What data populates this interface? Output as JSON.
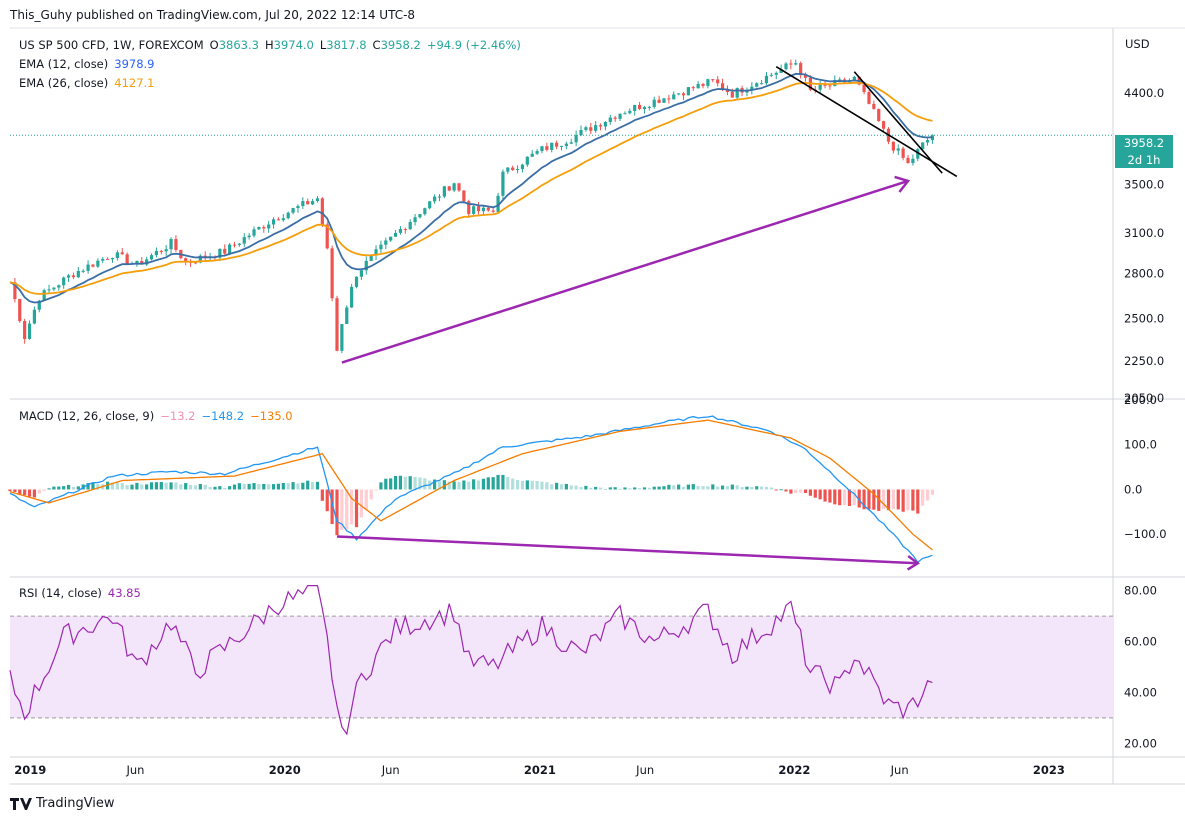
{
  "header": "This_Guhy published on TradingView.com, Jul 20, 2022 12:14 UTC-8",
  "footer_logo": "TradingView",
  "price_axis_unit": "USD",
  "colors": {
    "up": "#26a69a",
    "down": "#ef5350",
    "ema12": "#2962ff",
    "ema12_line": "#3a6ea5",
    "ema26": "#f59e0b",
    "macd": "#2196f3",
    "signal": "#f57c00",
    "rsi": "#9c27b0",
    "arrow": "#9c27b0",
    "trendline": "#000000",
    "rsi_band": "#f3e5fa"
  },
  "price_panel": {
    "symbol": "US SP 500 CFD, 1W, FOREXCOM",
    "ohlc": {
      "o_label": "O",
      "o": "3863.3",
      "h_label": "H",
      "h": "3974.0",
      "l_label": "L",
      "l": "3817.8",
      "c_label": "C",
      "c": "3958.2",
      "chg": "+94.9 (+2.46%)"
    },
    "ema12_label": "EMA (12, close)",
    "ema12_value": "3978.9",
    "ema26_label": "EMA (26, close)",
    "ema26_value": "4127.1",
    "last_price_tag": "3958.2",
    "countdown_tag": "2d 1h",
    "y_ticks": [
      "4400.0",
      "3500.0",
      "3100.0",
      "2800.0",
      "2500.0",
      "2250.0",
      "2050.0"
    ]
  },
  "macd_panel": {
    "label": "MACD (12, 26, close, 9)",
    "hist_value": "−13.2",
    "macd_value": "−148.2",
    "signal_value": "−135.0",
    "y_ticks": [
      "200.0",
      "100.0",
      "0.0",
      "−100.0"
    ]
  },
  "rsi_panel": {
    "label": "RSI (14, close)",
    "value": "43.85",
    "y_ticks": [
      "80.00",
      "60.00",
      "40.00",
      "20.00"
    ]
  },
  "x_ticks": [
    "2019",
    "Jun",
    "2020",
    "Jun",
    "2021",
    "Jun",
    "2022",
    "Jun",
    "2023"
  ],
  "chart_data": [
    {
      "type": "candlestick",
      "title": "US SP 500 CFD, 1W, FOREXCOM",
      "ylabel": "USD",
      "y_scale": "log",
      "ylim": [
        2050,
        4900
      ],
      "x_range": [
        "2018-12-03",
        "2023-04-03"
      ],
      "series_overview": {
        "points_date_close": [
          [
            "2018-12-03",
            2740
          ],
          [
            "2018-12-24",
            2390
          ],
          [
            "2019-01-14",
            2640
          ],
          [
            "2019-03-04",
            2800
          ],
          [
            "2019-04-29",
            2940
          ],
          [
            "2019-06-03",
            2860
          ],
          [
            "2019-07-22",
            3020
          ],
          [
            "2019-08-12",
            2880
          ],
          [
            "2019-10-07",
            2960
          ],
          [
            "2019-12-16",
            3210
          ],
          [
            "2020-02-17",
            3380
          ],
          [
            "2020-03-02",
            2960
          ],
          [
            "2020-03-16",
            2310
          ],
          [
            "2020-03-23",
            2480
          ],
          [
            "2020-04-13",
            2800
          ],
          [
            "2020-06-08",
            3090
          ],
          [
            "2020-08-31",
            3520
          ],
          [
            "2020-09-21",
            3280
          ],
          [
            "2020-10-26",
            3270
          ],
          [
            "2020-11-09",
            3590
          ],
          [
            "2021-01-04",
            3820
          ],
          [
            "2021-02-15",
            3930
          ],
          [
            "2021-04-26",
            4190
          ],
          [
            "2021-06-28",
            4350
          ],
          [
            "2021-09-06",
            4530
          ],
          [
            "2021-10-04",
            4390
          ],
          [
            "2022-01-03",
            4750
          ],
          [
            "2022-01-24",
            4420
          ],
          [
            "2022-03-28",
            4560
          ],
          [
            "2022-05-16",
            3900
          ],
          [
            "2022-06-13",
            3680
          ],
          [
            "2022-07-04",
            3863
          ],
          [
            "2022-07-18",
            3958
          ]
        ]
      },
      "indicators": [
        {
          "name": "EMA (12, close)",
          "last": 3978.9
        },
        {
          "name": "EMA (26, close)",
          "last": 4127.1
        }
      ],
      "annotations": [
        {
          "kind": "arrow",
          "from": [
            "2020-03-23",
            2240
          ],
          "to": [
            "2022-06-13",
            3530
          ]
        },
        {
          "kind": "trendline",
          "from": [
            "2021-12-06",
            4700
          ],
          "to": [
            "2022-08-22",
            3570
          ]
        },
        {
          "kind": "trendline",
          "from": [
            "2022-03-28",
            4640
          ],
          "to": [
            "2022-08-01",
            3600
          ]
        }
      ]
    },
    {
      "type": "line",
      "title": "MACD (12, 26, close, 9)",
      "ylim": [
        -180,
        200
      ],
      "series": [
        {
          "name": "MACD",
          "points_date_value": [
            [
              "2018-12-03",
              -10
            ],
            [
              "2019-01-07",
              -40
            ],
            [
              "2019-04-29",
              30
            ],
            [
              "2019-07-22",
              40
            ],
            [
              "2019-10-07",
              35
            ],
            [
              "2020-02-17",
              95
            ],
            [
              "2020-03-16",
              -70
            ],
            [
              "2020-04-13",
              -110
            ],
            [
              "2020-06-08",
              -20
            ],
            [
              "2020-09-07",
              40
            ],
            [
              "2020-11-09",
              95
            ],
            [
              "2021-03-15",
              120
            ],
            [
              "2021-06-28",
              150
            ],
            [
              "2021-08-30",
              165
            ],
            [
              "2021-11-29",
              130
            ],
            [
              "2022-01-17",
              90
            ],
            [
              "2022-03-14",
              10
            ],
            [
              "2022-05-16",
              -90
            ],
            [
              "2022-06-27",
              -160
            ],
            [
              "2022-07-18",
              -148.2
            ]
          ]
        },
        {
          "name": "Signal",
          "points_date_value": [
            [
              "2018-12-03",
              -5
            ],
            [
              "2019-01-28",
              -30
            ],
            [
              "2019-05-13",
              20
            ],
            [
              "2019-10-21",
              30
            ],
            [
              "2020-02-24",
              80
            ],
            [
              "2020-04-06",
              -20
            ],
            [
              "2020-05-18",
              -70
            ],
            [
              "2020-08-31",
              20
            ],
            [
              "2020-12-07",
              80
            ],
            [
              "2021-04-26",
              130
            ],
            [
              "2021-08-30",
              155
            ],
            [
              "2021-12-27",
              115
            ],
            [
              "2022-02-21",
              70
            ],
            [
              "2022-04-25",
              -10
            ],
            [
              "2022-06-20",
              -100
            ],
            [
              "2022-07-18",
              -135.0
            ]
          ]
        }
      ],
      "histogram_last": -13.2,
      "annotations": [
        {
          "kind": "arrow",
          "from": [
            "2020-03-16",
            -105
          ],
          "to": [
            "2022-06-27",
            -165
          ]
        }
      ]
    },
    {
      "type": "line",
      "title": "RSI (14, close)",
      "ylim": [
        15,
        85
      ],
      "bands": [
        30,
        70
      ],
      "series": [
        {
          "name": "RSI",
          "points_date_value": [
            [
              "2018-12-03",
              45
            ],
            [
              "2018-12-24",
              32
            ],
            [
              "2019-02-18",
              62
            ],
            [
              "2019-04-29",
              70
            ],
            [
              "2019-06-03",
              50
            ],
            [
              "2019-07-22",
              68
            ],
            [
              "2019-08-26",
              48
            ],
            [
              "2019-12-23",
              75
            ],
            [
              "2020-02-17",
              80
            ],
            [
              "2020-03-02",
              60
            ],
            [
              "2020-03-23",
              22
            ],
            [
              "2020-04-20",
              46
            ],
            [
              "2020-06-08",
              65
            ],
            [
              "2020-08-31",
              72
            ],
            [
              "2020-09-21",
              52
            ],
            [
              "2020-10-26",
              50
            ],
            [
              "2021-01-04",
              66
            ],
            [
              "2021-03-01",
              55
            ],
            [
              "2021-04-26",
              70
            ],
            [
              "2021-06-14",
              60
            ],
            [
              "2021-08-30",
              72
            ],
            [
              "2021-10-04",
              55
            ],
            [
              "2021-12-27",
              73
            ],
            [
              "2022-01-24",
              48
            ],
            [
              "2022-03-07",
              42
            ],
            [
              "2022-03-28",
              55
            ],
            [
              "2022-05-16",
              35
            ],
            [
              "2022-06-13",
              33
            ],
            [
              "2022-07-04",
              40
            ],
            [
              "2022-07-18",
              43.85
            ]
          ]
        }
      ]
    }
  ]
}
